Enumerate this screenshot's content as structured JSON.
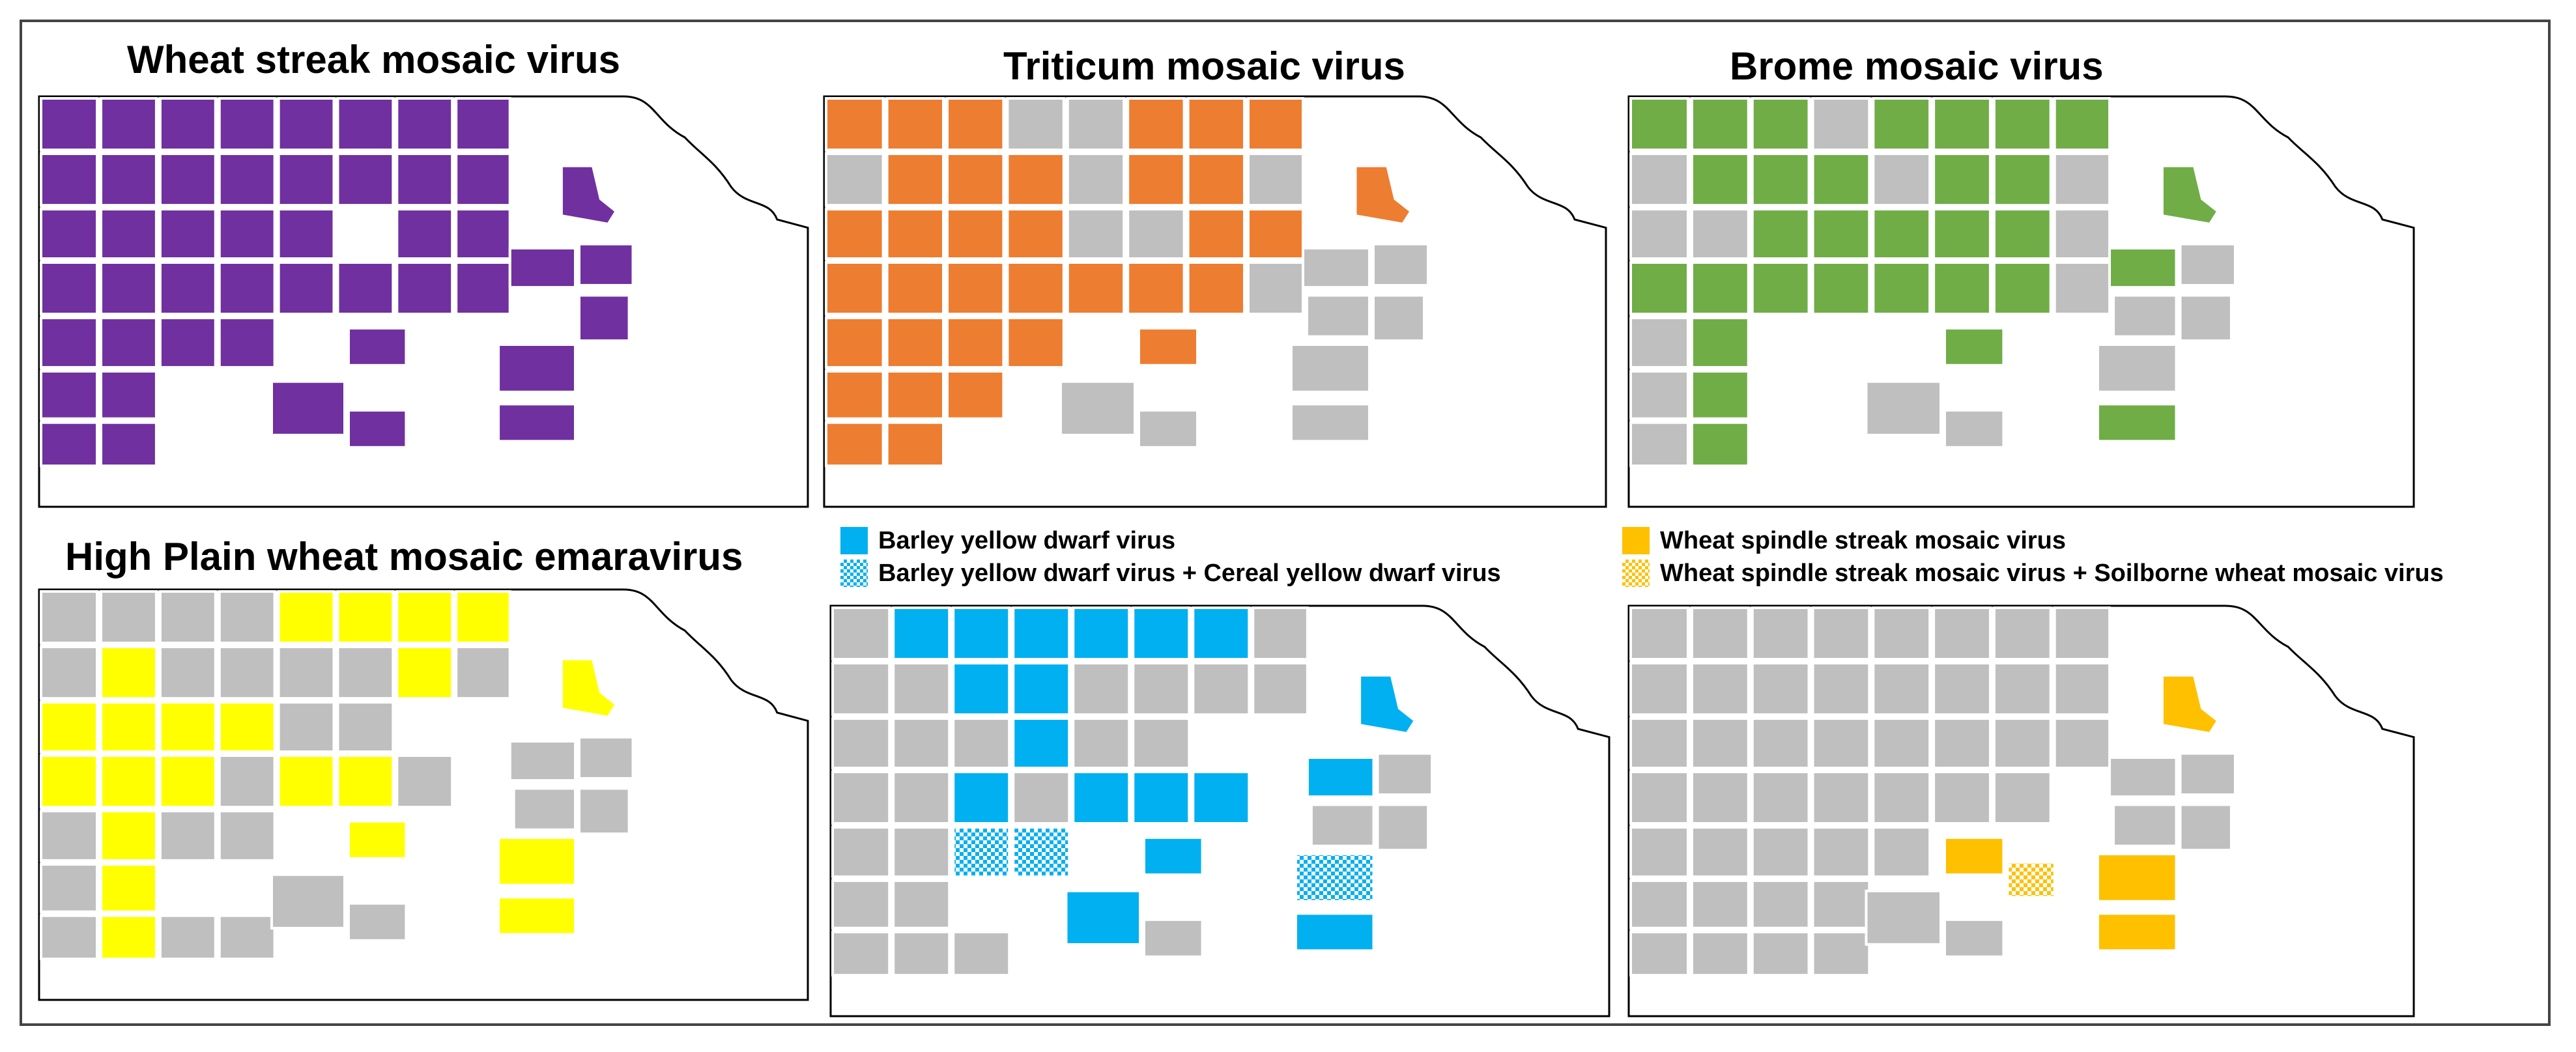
{
  "colors": {
    "wsmv": "#7030a0",
    "tm": "#ed7d31",
    "bm": "#70ad47",
    "hpwm": "#ffff00",
    "bydv": "#00b0f0",
    "wssm": "#ffc000",
    "untested": "#bfbfbf",
    "outline": "#000000"
  },
  "panels": [
    {
      "key": "wsmv",
      "title": "Wheat streak mosaic virus"
    },
    {
      "key": "tm",
      "title": "Triticum mosaic virus"
    },
    {
      "key": "bm",
      "title": "Brome mosaic virus"
    },
    {
      "key": "hpwm",
      "title": "High Plain wheat mosaic emaravirus"
    },
    {
      "key": "bydv",
      "title": ""
    },
    {
      "key": "wssm",
      "title": ""
    }
  ],
  "legends": {
    "bydv": [
      {
        "label": "Barley yellow  dwarf virus",
        "fill": "solid",
        "color": "#00b0f0"
      },
      {
        "label": "Barley yellow  dwarf virus +  Cereal yellow  dwarf virus",
        "fill": "checker",
        "color": "#00b0f0"
      }
    ],
    "wssm": [
      {
        "label": "Wheat spindle  streak mosaic  virus",
        "fill": "solid",
        "color": "#ffc000"
      },
      {
        "label": "Wheat spindle  streak mosaic  virus + Soilborne  wheat mosaic  virus",
        "fill": "checker",
        "color": "#ffc000"
      }
    ]
  }
}
